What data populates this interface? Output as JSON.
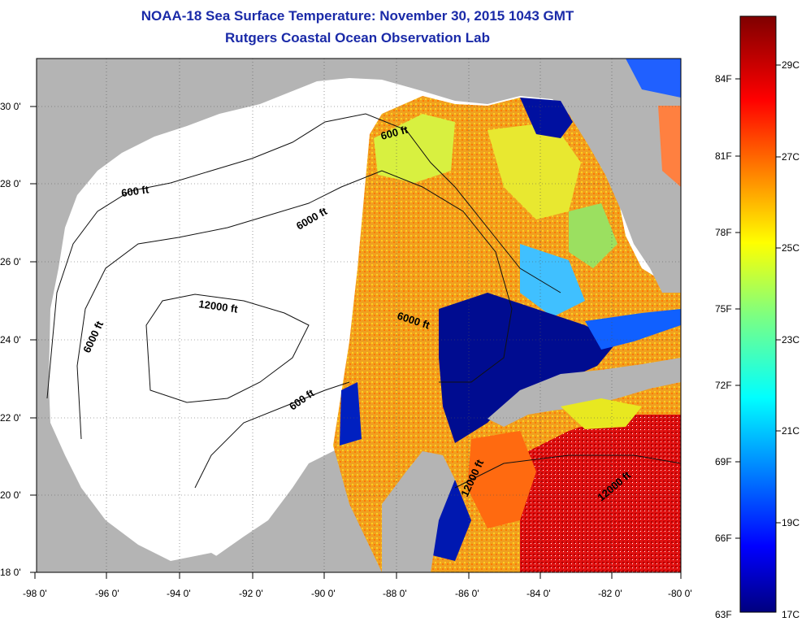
{
  "title": "NOAA-18 Sea Surface Temperature:  November 30, 2015 1043 GMT",
  "subtitle": "Rutgers Coastal Ocean Observation Lab",
  "lon_ticks": [
    "-98 0'",
    "-96 0'",
    "-94 0'",
    "-92 0'",
    "-90 0'",
    "-88 0'",
    "-86 0'",
    "-84 0'",
    "-82 0'",
    "-80 0'"
  ],
  "lat_ticks": [
    "18 0'",
    "20 0'",
    "22 0'",
    "24 0'",
    "26 0'",
    "28 0'",
    "30 0'"
  ],
  "contour_labels": {
    "c600_nw": "600 ft",
    "c600_ne": "600 ft",
    "c600_s": "600 ft",
    "c6000_n": "6000 ft",
    "c6000_w": "6000 ft",
    "c6000_e": "6000 ft",
    "c12000_c": "12000 ft",
    "c12000_yuc": "12000 ft",
    "c12000_car": "12000 ft"
  },
  "colorbar": {
    "f_labels": [
      "84F",
      "81F",
      "78F",
      "75F",
      "72F",
      "69F",
      "66F",
      "63F"
    ],
    "c_labels": [
      "29C",
      "27C",
      "25C",
      "23C",
      "21C",
      "19C",
      "17C"
    ],
    "min_c": 17,
    "max_c": 30
  },
  "colors": {
    "land": "#b4b4b4",
    "no_data": "#ffffff",
    "title": "#1a2aa8",
    "cold": "#000080",
    "hot": "#800000"
  }
}
